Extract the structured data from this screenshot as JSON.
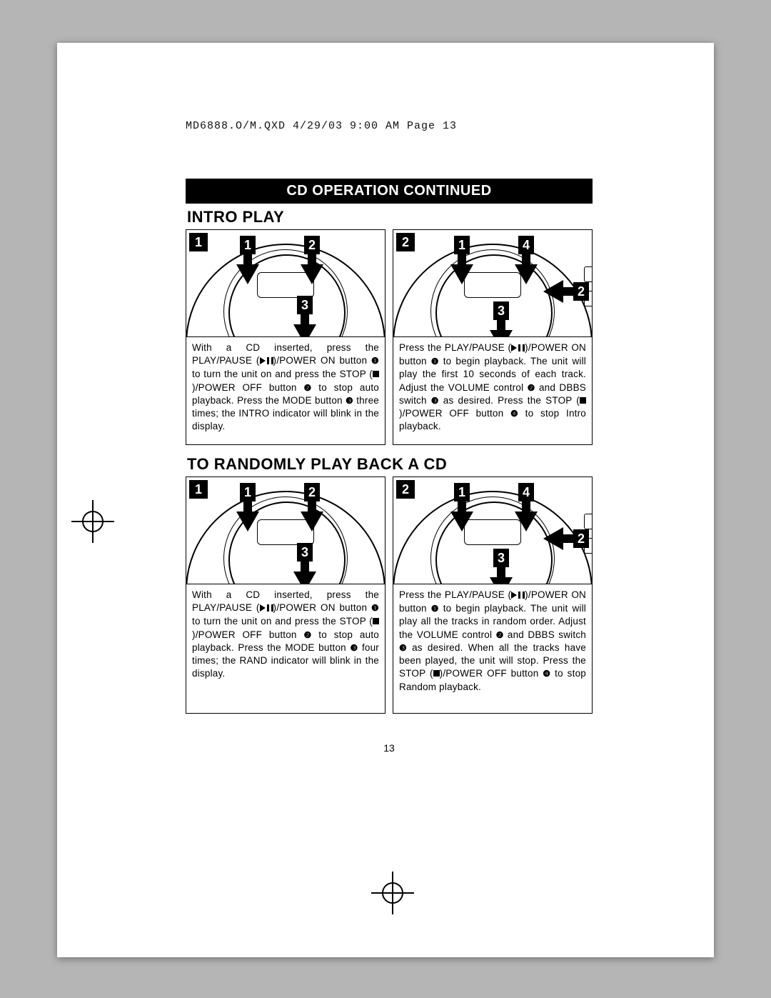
{
  "meta": {
    "header_stamp": "MD6888.O/M.QXD  4/29/03  9:00 AM  Page 13",
    "page_number": "13"
  },
  "banner": "CD OPERATION CONTINUED",
  "sections": [
    {
      "heading": "INTRO PLAY",
      "left": {
        "step_badge": "1",
        "callouts": [
          "1",
          "2",
          "3"
        ],
        "text_html": "With a CD inserted, press the PLAY/PAUSE (<span class='sym-pp'></span>)/POWER ON button <span class='circ-num'>❶</span> to turn the unit on and press the STOP (<span class='sym-stop'></span>)/POWER OFF button <span class='circ-num'>❷</span> to stop auto playback. Press the MODE button <span class='circ-num'>❸</span> three times; the INTRO indicator will blink in the display."
      },
      "right": {
        "step_badge": "2",
        "callouts": [
          "1",
          "4",
          "3",
          "2"
        ],
        "text_html": "Press the PLAY/PAUSE (<span class='sym-pp'></span>)/POWER ON button <span class='circ-num'>❶</span> to begin playback. The unit will play the first 10 seconds of each track. Adjust the VOLUME control <span class='circ-num'>❷</span> and DBBS switch <span class='circ-num'>❸</span> as desired. Press the STOP (<span class='sym-stop'></span>)/POWER OFF button <span class='circ-num'>❹</span> to stop Intro playback."
      }
    },
    {
      "heading": "TO RANDOMLY PLAY BACK A CD",
      "left": {
        "step_badge": "1",
        "callouts": [
          "1",
          "2",
          "3"
        ],
        "text_html": "With a CD inserted, press the PLAY/PAUSE (<span class='sym-pp'></span>)/POWER ON button <span class='circ-num'>❶</span> to turn the unit on and press the STOP (<span class='sym-stop'></span>)/POWER OFF button <span class='circ-num'>❷</span> to stop auto playback. Press the MODE button <span class='circ-num'>❸</span> four times; the RAND indicator will blink in the display."
      },
      "right": {
        "step_badge": "2",
        "callouts": [
          "1",
          "4",
          "3",
          "2"
        ],
        "text_html": "Press the PLAY/PAUSE (<span class='sym-pp'></span>)/POWER ON button <span class='circ-num'>❶</span> to begin playback. The unit will play all the tracks in random order. Adjust the VOLUME control <span class='circ-num'>❷</span> and DBBS switch <span class='circ-num'>❸</span> as desired. When all the tracks have been played, the unit will stop. Press the STOP (<span class='sym-stop'></span>)/POWER OFF button <span class='circ-num'>❹</span> to stop Random playback."
      }
    }
  ],
  "diagram_style": {
    "player_border": "#000000",
    "background": "#ffffff",
    "badge_bg": "#000000",
    "badge_fg": "#ffffff"
  }
}
